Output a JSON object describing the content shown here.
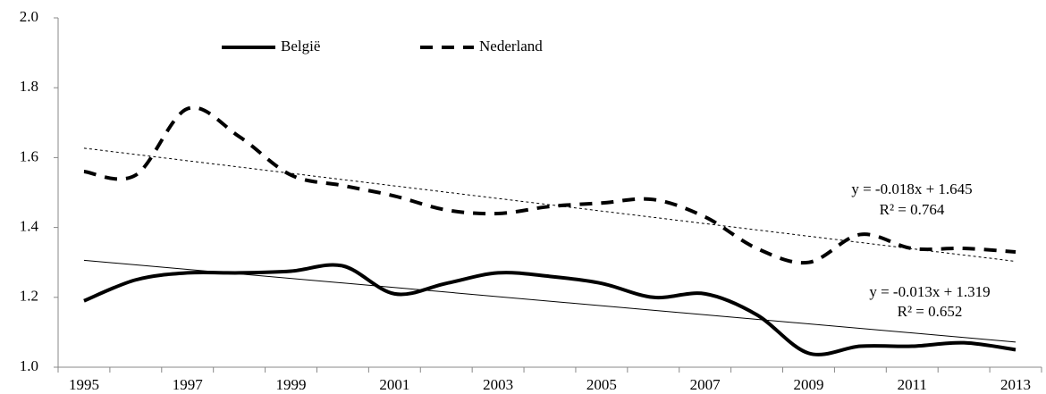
{
  "chart_data": {
    "type": "line",
    "categories": [
      "1995",
      null,
      "1997",
      null,
      "1999",
      null,
      "2001",
      null,
      "2003",
      null,
      "2005",
      null,
      "2007",
      null,
      "2009",
      null,
      "2011",
      null,
      "2013"
    ],
    "series": [
      {
        "name": "België",
        "color": "#000000",
        "dash": "solid",
        "values": [
          1.19,
          1.25,
          1.27,
          1.27,
          1.275,
          1.29,
          1.21,
          1.24,
          1.27,
          1.26,
          1.24,
          1.2,
          1.21,
          1.15,
          1.04,
          1.06,
          1.06,
          1.07,
          1.05
        ],
        "trendline": {
          "slope": -0.013,
          "intercept": 1.319,
          "equation": "y = -0.013x + 1.319",
          "r2_label": "R² = 0.652"
        }
      },
      {
        "name": "Nederland",
        "color": "#000000",
        "dash": "dashed",
        "values": [
          1.56,
          1.55,
          1.74,
          1.66,
          1.55,
          1.52,
          1.49,
          1.45,
          1.44,
          1.46,
          1.47,
          1.48,
          1.43,
          1.34,
          1.3,
          1.38,
          1.34,
          1.34,
          1.33
        ],
        "trendline": {
          "slope": -0.018,
          "intercept": 1.645,
          "equation": "y = -0.018x + 1.645",
          "r2_label": "R² = 0.764"
        }
      }
    ],
    "ylim": [
      1.0,
      2.0
    ],
    "yticks": [
      {
        "value": 1.0,
        "label": "1.0"
      },
      1.2,
      1.4,
      1.6,
      1.8,
      {
        "value": 2.0,
        "label": "2.0"
      }
    ],
    "grid": false,
    "legend": "top"
  }
}
